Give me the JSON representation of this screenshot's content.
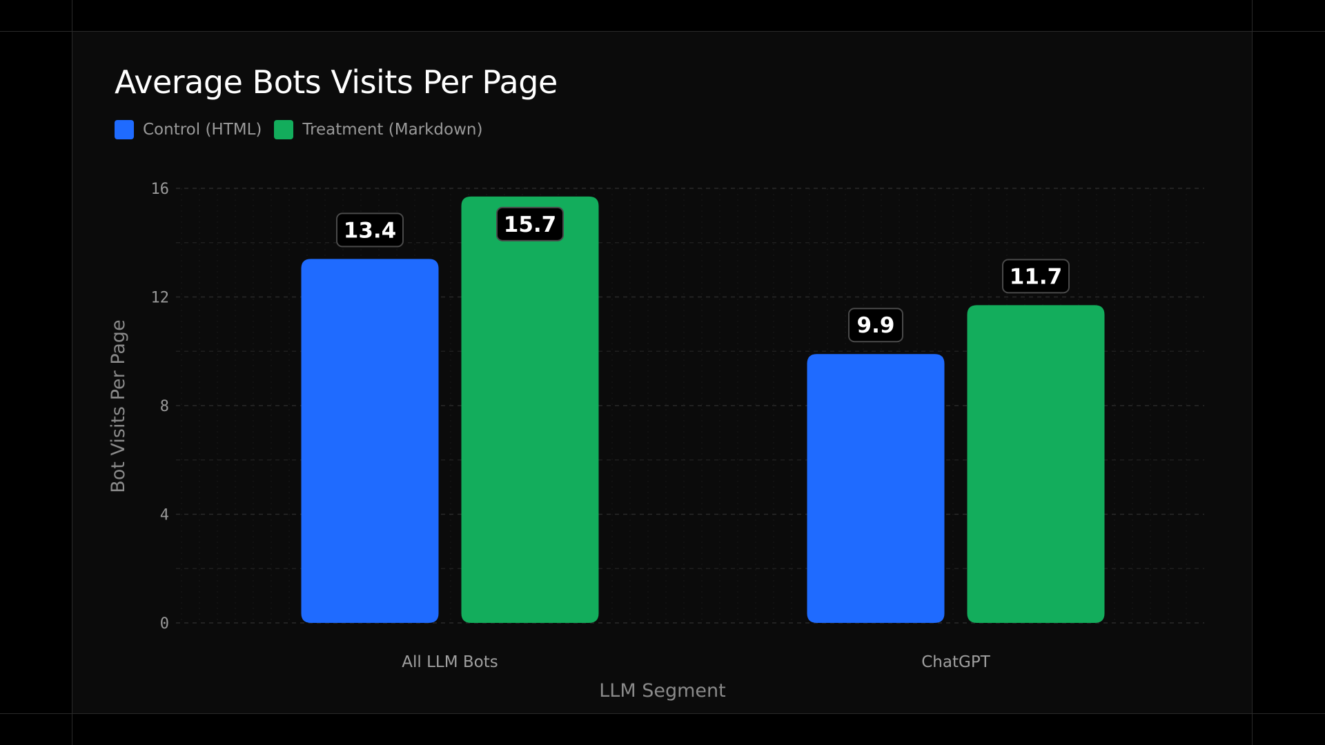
{
  "chart_data": {
    "type": "bar",
    "title": "Average Bots Visits Per Page",
    "xlabel": "LLM Segment",
    "ylabel": "Bot Visits Per Page",
    "categories": [
      "All LLM Bots",
      "ChatGPT"
    ],
    "series": [
      {
        "name": "Control (HTML)",
        "color": "#1f6bff",
        "values": [
          13.4,
          9.9
        ],
        "labels": [
          "13.4",
          "9.9"
        ]
      },
      {
        "name": "Treatment (Markdown)",
        "color": "#13ad5c",
        "values": [
          15.7,
          11.7
        ],
        "labels": [
          "15.7",
          "11.7"
        ]
      }
    ],
    "ylim": [
      0,
      16
    ],
    "yticks": [
      0,
      4,
      8,
      12,
      16
    ],
    "ytick_labels": [
      "0",
      "4",
      "8",
      "12",
      "16"
    ],
    "grid": true,
    "legend_position": "top-left"
  },
  "colors": {
    "background": "#000000",
    "panel": "#0b0b0b",
    "gridline": "#2b2b2b"
  }
}
